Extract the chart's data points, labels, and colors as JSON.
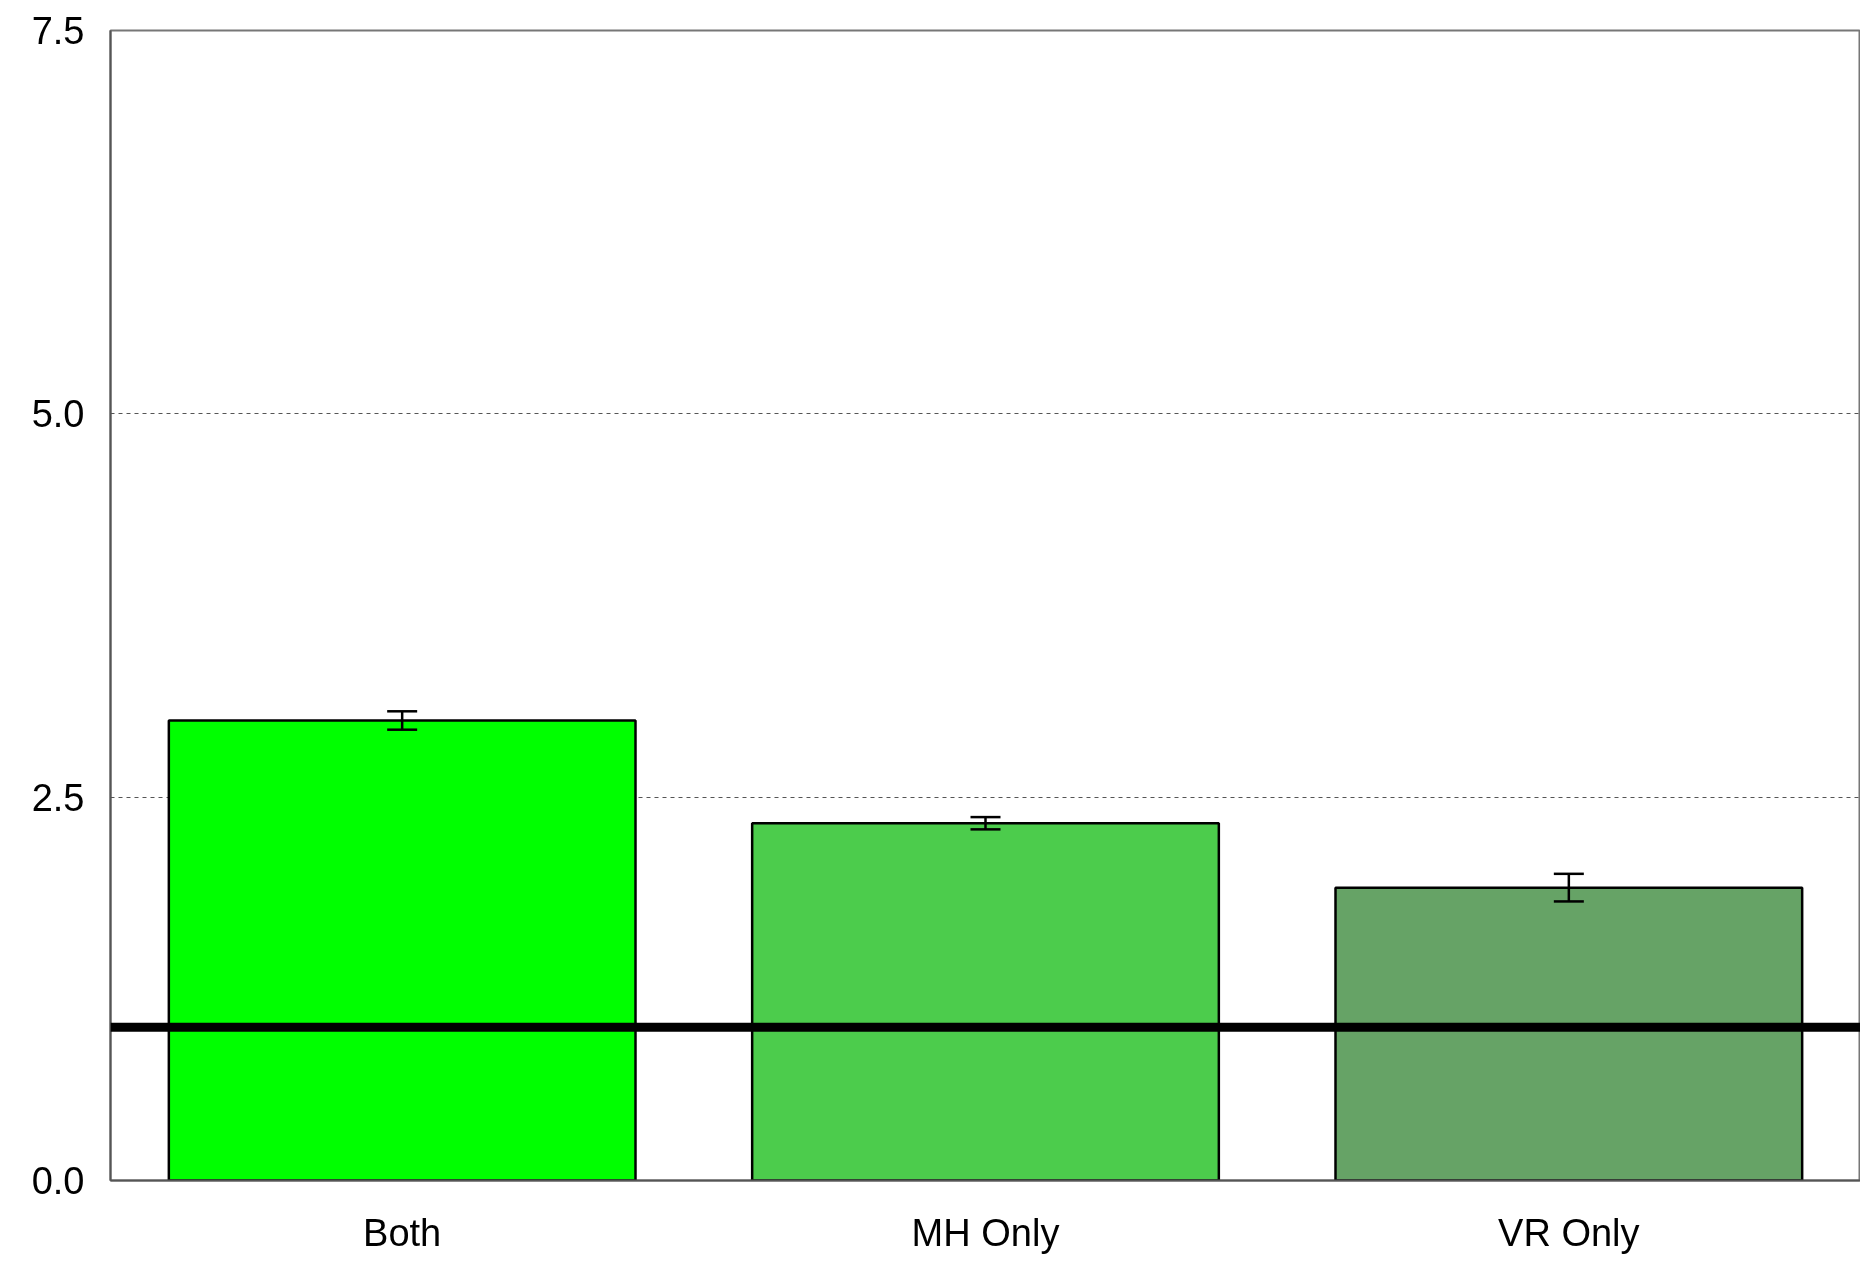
{
  "chart_data": {
    "type": "bar",
    "categories": [
      "Both",
      "MH Only",
      "VR Only"
    ],
    "values": [
      3.0,
      2.33,
      1.91
    ],
    "colors": [
      "#00ff00",
      "#4ccc4c",
      "#66a366"
    ],
    "errors": [
      0.06,
      0.04,
      0.09
    ],
    "ylim": [
      0,
      7.5
    ],
    "yticks": [
      {
        "value": 0,
        "label": "0.0"
      },
      {
        "value": 2.5,
        "label": "2.5"
      },
      {
        "value": 5,
        "label": "5.0"
      },
      {
        "value": 7.5,
        "label": "7.5"
      }
    ],
    "grid": "y",
    "ref_lines": [
      {
        "axis": "y",
        "value": 1.0,
        "color": "#000000"
      }
    ]
  }
}
